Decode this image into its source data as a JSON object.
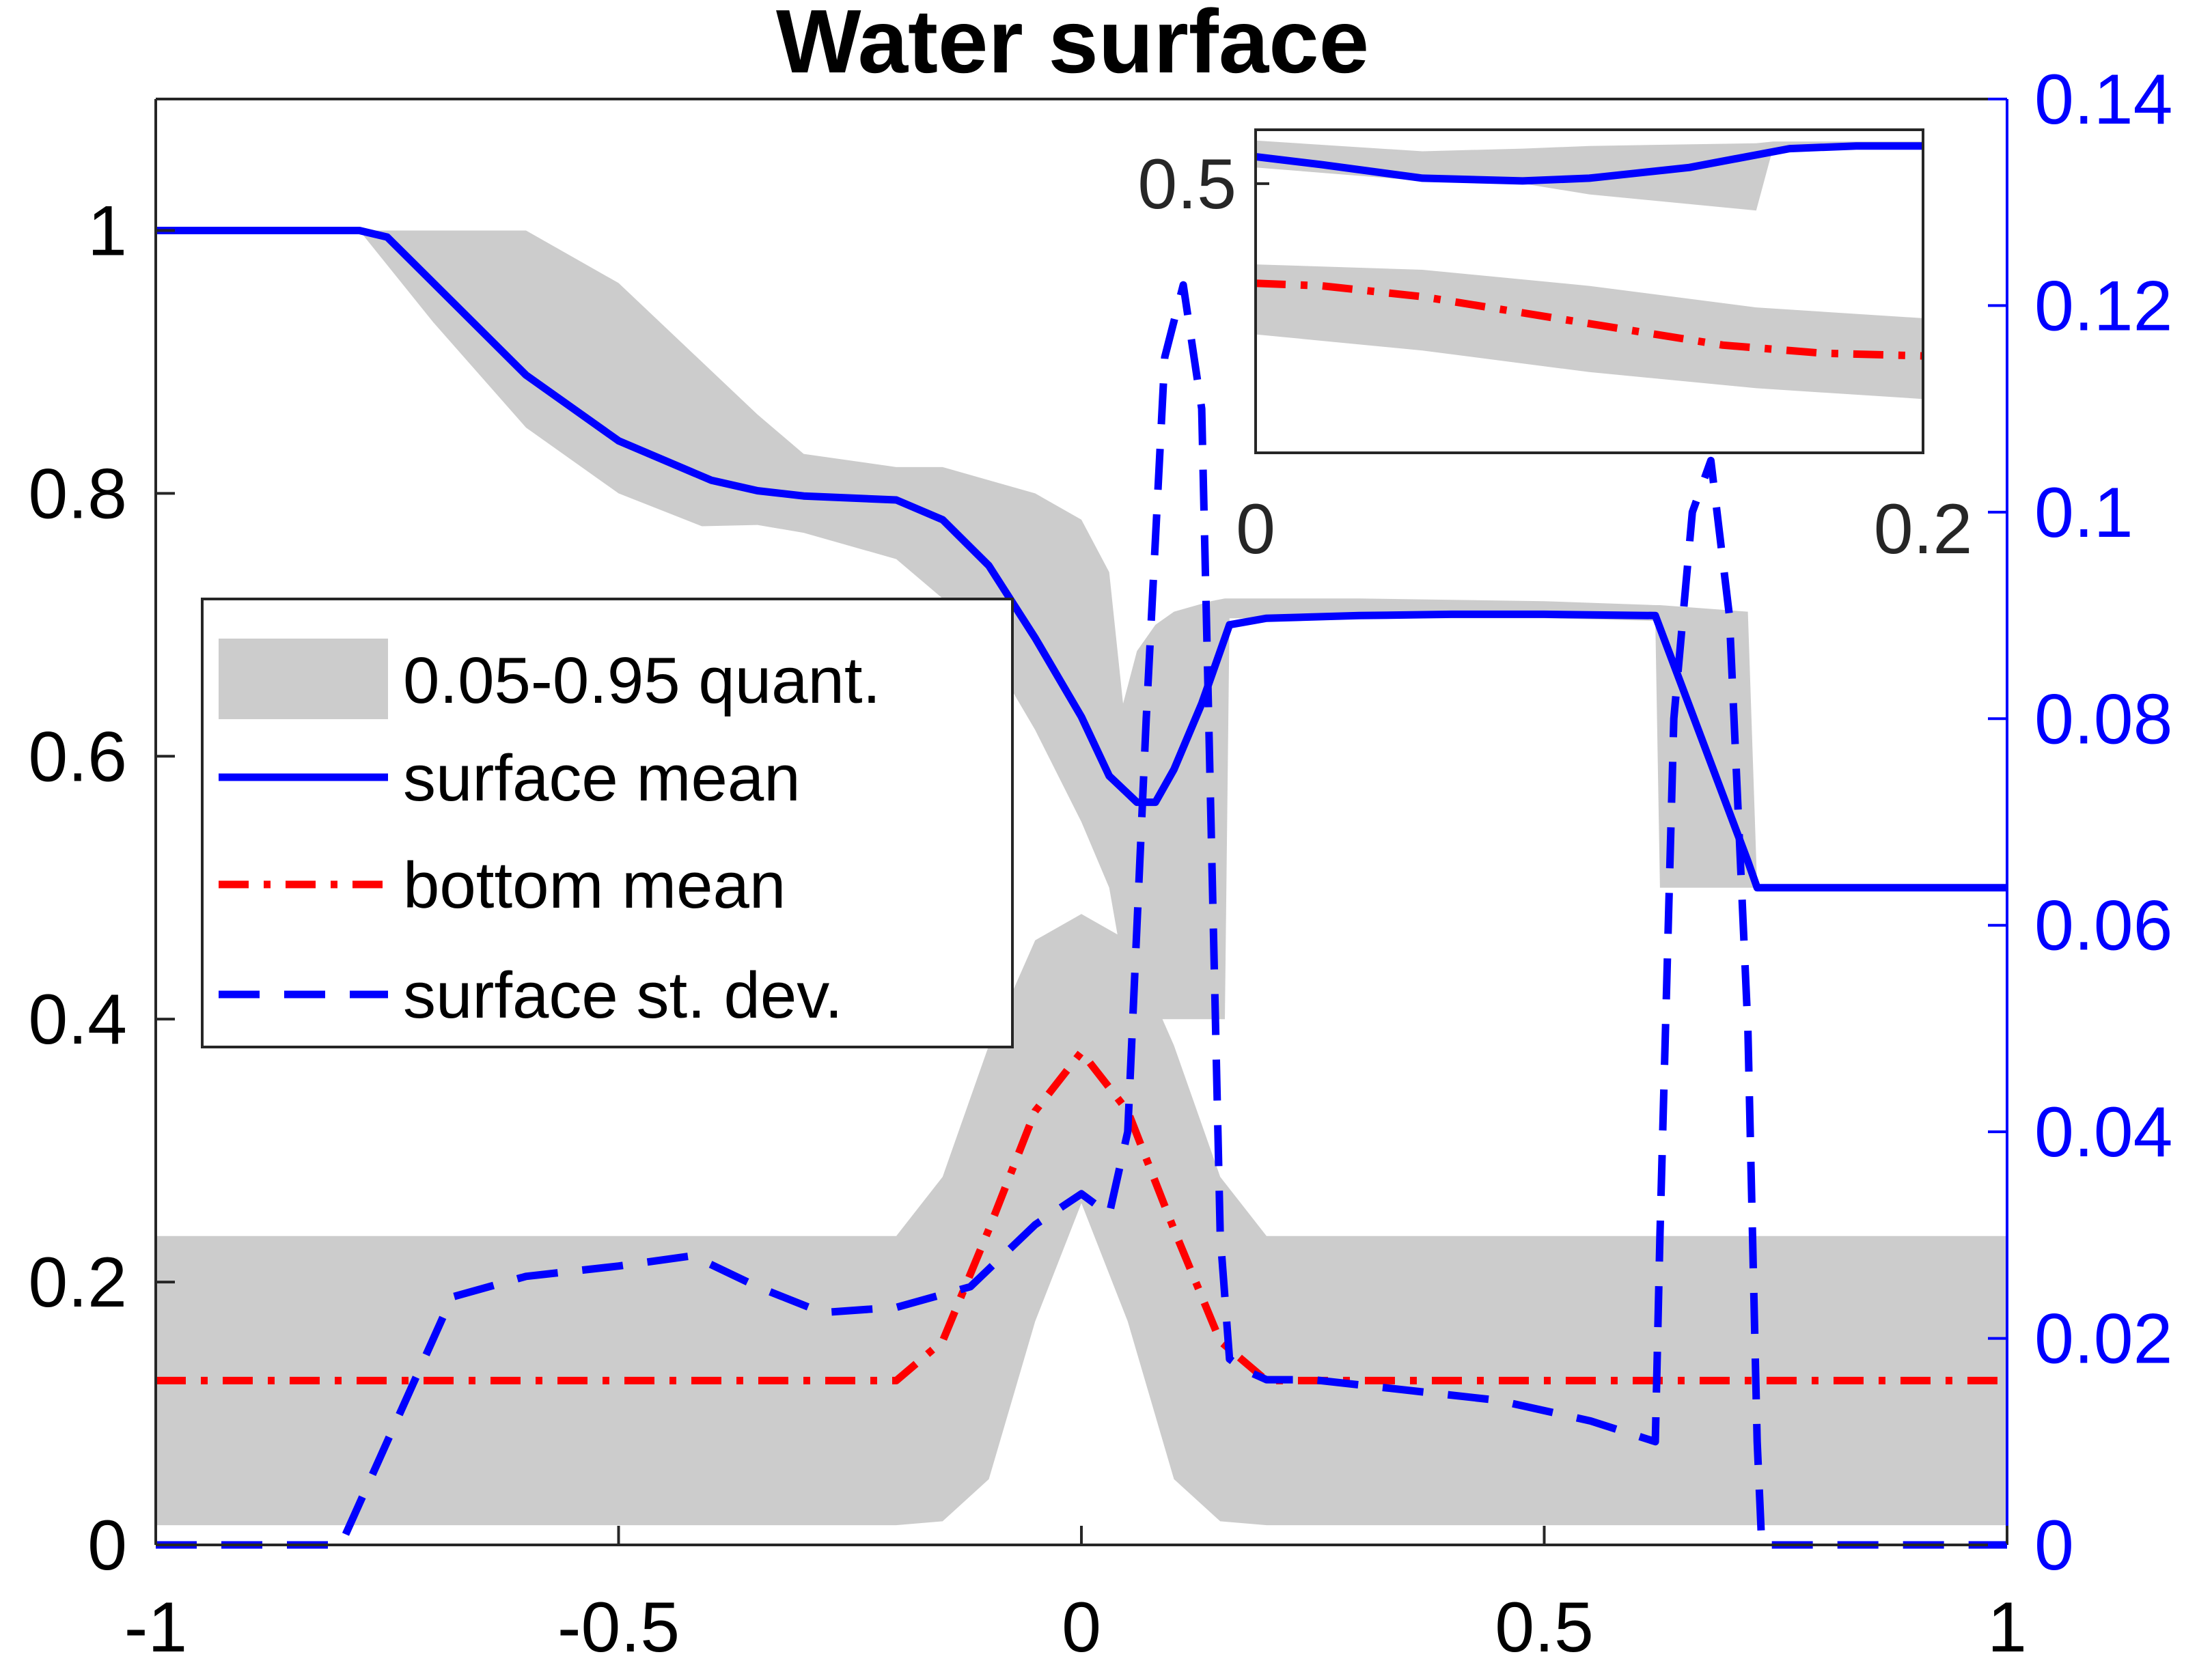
{
  "chart_data": {
    "type": "line",
    "title": "Water surface",
    "xlabel": "",
    "ylabel": "",
    "xlim": [
      -1,
      1
    ],
    "ylim": [
      0,
      1.1
    ],
    "y2lim": [
      0,
      0.14
    ],
    "x_ticks": [
      "-1",
      "-0.5",
      "0",
      "0.5",
      "1"
    ],
    "x_tick_values": [
      -1,
      -0.5,
      0,
      0.5,
      1
    ],
    "y_ticks": [
      "0",
      "0.2",
      "0.4",
      "0.6",
      "0.8",
      "1"
    ],
    "y_tick_values": [
      0,
      0.2,
      0.4,
      0.6,
      0.8,
      1
    ],
    "y2_ticks": [
      "0",
      "0.02",
      "0.04",
      "0.06",
      "0.08",
      "0.1",
      "0.12",
      "0.14"
    ],
    "y2_tick_values": [
      0,
      0.02,
      0.04,
      0.06,
      0.08,
      0.1,
      0.12,
      0.14
    ],
    "colors": {
      "surface_mean": "#0000ff",
      "bottom_mean": "#ff0000",
      "std_dev": "#0000ff",
      "quantile_band": "#cccccc",
      "axis_right": "#0000ff"
    },
    "legend": {
      "placement": "middle-left",
      "entries": [
        "0.05-0.95 quant.",
        "surface mean",
        "bottom mean",
        "surface st. dev."
      ]
    },
    "series": [
      {
        "name": "surface mean",
        "axis": "left",
        "style": "solid",
        "x": [
          -1,
          -0.78,
          -0.75,
          -0.7,
          -0.6,
          -0.5,
          -0.4,
          -0.35,
          -0.3,
          -0.2,
          -0.15,
          -0.1,
          -0.05,
          0,
          0.03,
          0.06,
          0.08,
          0.1,
          0.13,
          0.16,
          0.2,
          0.3,
          0.4,
          0.5,
          0.62,
          0.72,
          0.73,
          1
        ],
        "values": [
          1.0,
          1.0,
          0.995,
          0.96,
          0.89,
          0.84,
          0.81,
          0.802,
          0.798,
          0.795,
          0.78,
          0.745,
          0.69,
          0.63,
          0.585,
          0.565,
          0.565,
          0.59,
          0.64,
          0.7,
          0.705,
          0.707,
          0.708,
          0.708,
          0.707,
          0.52,
          0.5,
          0.5
        ]
      },
      {
        "name": "bottom mean",
        "axis": "left",
        "style": "dashdot",
        "x": [
          -1,
          -0.2,
          -0.15,
          -0.1,
          -0.05,
          0,
          0.05,
          0.1,
          0.15,
          0.2,
          1
        ],
        "values": [
          0.125,
          0.125,
          0.155,
          0.24,
          0.33,
          0.375,
          0.33,
          0.24,
          0.155,
          0.125,
          0.125
        ]
      },
      {
        "name": "surface st. dev.",
        "axis": "right",
        "style": "dashed",
        "x": [
          -1,
          -0.8,
          -0.72,
          -0.68,
          -0.6,
          -0.5,
          -0.42,
          -0.35,
          -0.28,
          -0.2,
          -0.12,
          -0.05,
          0,
          0.03,
          0.05,
          0.07,
          0.09,
          0.11,
          0.13,
          0.14,
          0.15,
          0.16,
          0.175,
          0.2,
          0.25,
          0.35,
          0.45,
          0.55,
          0.62,
          0.625,
          0.64,
          0.66,
          0.68,
          0.7,
          0.72,
          0.73,
          0.735,
          0.75,
          1
        ],
        "values": [
          0,
          0,
          0.016,
          0.024,
          0.026,
          0.027,
          0.028,
          0.025,
          0.0225,
          0.023,
          0.025,
          0.031,
          0.034,
          0.032,
          0.04,
          0.08,
          0.115,
          0.122,
          0.11,
          0.07,
          0.03,
          0.018,
          0.017,
          0.016,
          0.016,
          0.015,
          0.014,
          0.012,
          0.01,
          0.03,
          0.08,
          0.1,
          0.105,
          0.09,
          0.05,
          0.01,
          0,
          0,
          0
        ]
      }
    ],
    "band": {
      "name": "0.05-0.95 quant.",
      "axis": "left",
      "x": [
        -1,
        -0.78,
        -0.7,
        -0.6,
        -0.5,
        -0.41,
        -0.35,
        -0.3,
        -0.2,
        -0.15,
        -0.1,
        -0.05,
        0,
        0.03,
        0.045,
        0.06,
        0.08,
        0.1,
        0.14,
        0.155,
        0.16,
        0.3,
        0.5,
        0.62,
        0.625,
        0.72,
        0.73,
        1
      ],
      "lower": [
        1.0,
        1.0,
        0.93,
        0.85,
        0.8,
        0.775,
        0.776,
        0.77,
        0.75,
        0.72,
        0.68,
        0.62,
        0.55,
        0.5,
        0.44,
        0.41,
        0.4,
        0.4,
        0.4,
        0.4,
        0.705,
        0.705,
        0.705,
        0.703,
        0.5,
        0.5,
        0.5,
        0.5
      ],
      "upper": [
        1.0,
        1.0,
        1.0,
        1.0,
        0.96,
        0.9,
        0.86,
        0.83,
        0.82,
        0.82,
        0.81,
        0.8,
        0.78,
        0.74,
        0.64,
        0.68,
        0.7,
        0.71,
        0.718,
        0.72,
        0.72,
        0.72,
        0.718,
        0.715,
        0.715,
        0.71,
        0.5,
        0.5
      ]
    },
    "bottom_band": {
      "x": [
        -1,
        -0.2,
        -0.15,
        -0.1,
        -0.05,
        0,
        0.05,
        0.1,
        0.15,
        0.2,
        1
      ],
      "lower": [
        0.015,
        0.015,
        0.018,
        0.05,
        0.17,
        0.26,
        0.17,
        0.05,
        0.018,
        0.015,
        0.015
      ],
      "upper": [
        0.235,
        0.235,
        0.28,
        0.38,
        0.46,
        0.48,
        0.46,
        0.38,
        0.28,
        0.235,
        0.235
      ]
    },
    "inset": {
      "x_ticks": [
        "0",
        "0.2"
      ],
      "x_tick_values": [
        0,
        0.2
      ],
      "y_ticks": [
        "0.5"
      ],
      "y_tick_values": [
        0.5
      ],
      "xlim": [
        0,
        0.2
      ],
      "ylim": [
        0,
        0.6
      ],
      "series": [
        {
          "name": "surface mean",
          "x": [
            0,
            0.02,
            0.05,
            0.08,
            0.1,
            0.13,
            0.16,
            0.18,
            0.2
          ],
          "values": [
            0.55,
            0.535,
            0.51,
            0.505,
            0.51,
            0.53,
            0.565,
            0.57,
            0.57
          ]
        },
        {
          "name": "bottom mean",
          "x": [
            0,
            0.02,
            0.05,
            0.08,
            0.11,
            0.14,
            0.17,
            0.2
          ],
          "values": [
            0.315,
            0.31,
            0.29,
            0.26,
            0.23,
            0.2,
            0.185,
            0.18
          ]
        }
      ],
      "band_top": {
        "x": [
          0,
          0.05,
          0.08,
          0.1,
          0.15,
          0.15,
          0.155,
          0.2
        ],
        "lower": [
          0.53,
          0.505,
          0.5,
          0.48,
          0.45,
          0.45,
          0.565,
          0.565
        ],
        "upper": [
          0.58,
          0.56,
          0.565,
          0.57,
          0.575,
          0.575,
          0.578,
          0.578
        ]
      },
      "band_bottom": {
        "x": [
          0,
          0.05,
          0.1,
          0.15,
          0.2
        ],
        "lower": [
          0.22,
          0.19,
          0.15,
          0.12,
          0.1
        ],
        "upper": [
          0.35,
          0.34,
          0.31,
          0.27,
          0.25
        ]
      }
    }
  }
}
